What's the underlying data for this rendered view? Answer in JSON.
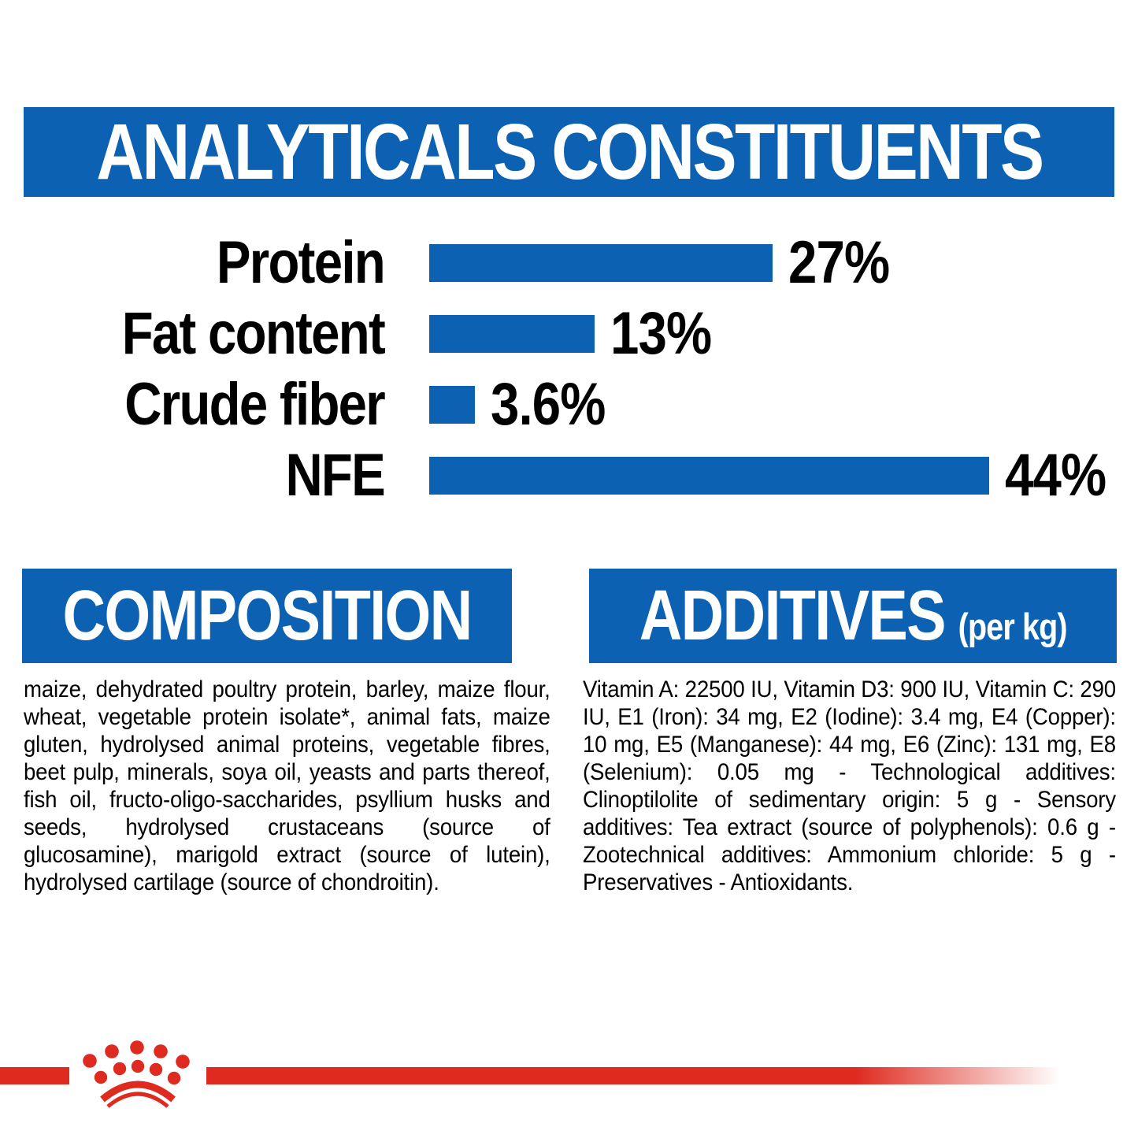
{
  "colors": {
    "blue": "#0D61B2",
    "red": "#DF2A20",
    "text": "#000000"
  },
  "header": {
    "title": "ANALYTICALS CONSTITUENTS"
  },
  "chart_data": {
    "type": "bar",
    "orientation": "horizontal",
    "title": "ANALYTICALS CONSTITUENTS",
    "categories": [
      "Protein",
      "Fat content",
      "Crude fiber",
      "NFE"
    ],
    "values": [
      27,
      13,
      3.6,
      44
    ],
    "value_labels": [
      "27%",
      "13%",
      "3.6%",
      "44%"
    ],
    "bar_color": "#0D61B2",
    "label_color": "#000000",
    "xlim": [
      0,
      48
    ],
    "grid": false,
    "legend": false
  },
  "composition": {
    "title": "COMPOSITION",
    "body": "maize, dehydrated poultry protein, barley, maize flour, wheat, vegetable protein isolate*, animal fats, maize gluten, hydrolysed animal proteins, vegetable fibres, beet pulp, minerals, soya oil, yeasts and parts thereof, fish oil, fructo-oligo-saccharides, psyllium husks and seeds, hydrolysed crustaceans (source of glucosamine), marigold extract (source of lutein), hydrolysed cartilage (source of chondroitin)."
  },
  "additives": {
    "title": "ADDITIVES",
    "unit_suffix": "(per kg)",
    "body": "Vitamin A: 22500 IU, Vitamin D3: 900 IU, Vitamin C: 290 IU, E1 (Iron): 34 mg, E2 (Iodine): 3.4 mg, E4 (Copper): 10 mg, E5 (Manganese): 44 mg, E6 (Zinc): 131 mg, E8 (Selenium): 0.05 mg - Technological additives: Clinoptilolite of sedimentary origin: 5 g - Sensory additives: Tea extract (source of polyphenols): 0.6 g - Zootechnical additives: Ammonium chloride: 5 g - Preservatives - Antioxidants."
  },
  "footer": {
    "logo": "royal-canin-crown"
  }
}
